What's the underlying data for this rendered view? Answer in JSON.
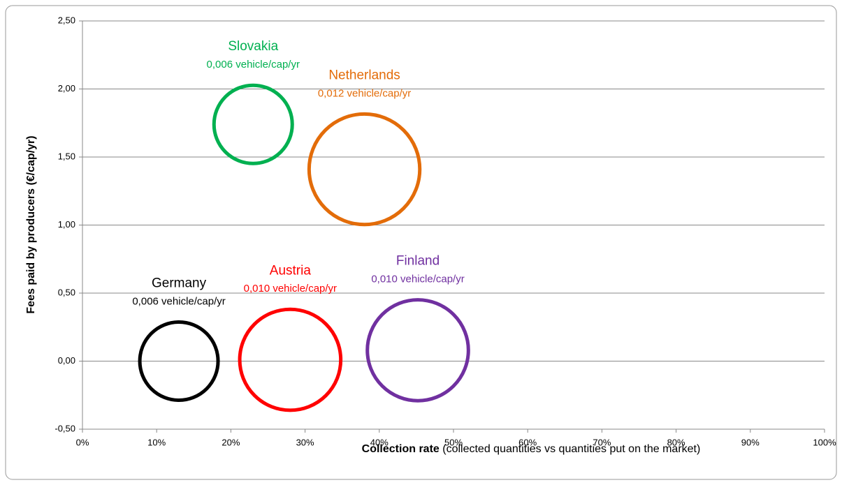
{
  "chart_data": {
    "type": "bubble",
    "x_label": [
      "Collection rate",
      " (collected quantities vs quantities put on the market)"
    ],
    "y_label": "Fees paid by producers (€/cap/yr)",
    "xlim": [
      0,
      100
    ],
    "xticks": [
      {
        "value": 0,
        "label": "0%"
      },
      {
        "value": 10,
        "label": "10%"
      },
      {
        "value": 20,
        "label": "20%"
      },
      {
        "value": 30,
        "label": "30%"
      },
      {
        "value": 40,
        "label": "40%"
      },
      {
        "value": 50,
        "label": "50%"
      },
      {
        "value": 60,
        "label": "60%"
      },
      {
        "value": 70,
        "label": "70%"
      },
      {
        "value": 80,
        "label": "80%"
      },
      {
        "value": 90,
        "label": "90%"
      },
      {
        "value": 100,
        "label": "100%"
      }
    ],
    "ylim": [
      -0.5,
      2.5
    ],
    "yticks": [
      {
        "value": -0.5,
        "label": "-0,50"
      },
      {
        "value": 0,
        "label": "0,00"
      },
      {
        "value": 0.5,
        "label": "0,50"
      },
      {
        "value": 1,
        "label": "1,00"
      },
      {
        "value": 1.5,
        "label": "1,50"
      },
      {
        "value": 2,
        "label": "2,00"
      },
      {
        "value": 2.5,
        "label": "2,50"
      }
    ],
    "grid": true,
    "series": [
      {
        "name": "Slovakia",
        "color": "#00b050",
        "x": [
          23
        ],
        "values": [
          1.74
        ],
        "sizes": [
          0.006
        ],
        "size_labels": [
          "0,006 vehicle/cap/yr"
        ]
      },
      {
        "name": "Netherlands",
        "color": "#e36c09",
        "x": [
          38
        ],
        "values": [
          1.41
        ],
        "sizes": [
          0.012
        ],
        "size_labels": [
          "0,012 vehicle/cap/yr"
        ]
      },
      {
        "name": "Germany",
        "color": "#000000",
        "x": [
          13
        ],
        "values": [
          0.0
        ],
        "sizes": [
          0.006
        ],
        "size_labels": [
          "0,006 vehicle/cap/yr"
        ]
      },
      {
        "name": "Austria",
        "color": "#ff0000",
        "x": [
          28
        ],
        "values": [
          0.01
        ],
        "sizes": [
          0.01
        ],
        "size_labels": [
          "0,010 vehicle/cap/yr"
        ]
      },
      {
        "name": "Finland",
        "color": "#7030a0",
        "x": [
          45.2
        ],
        "values": [
          0.08
        ],
        "sizes": [
          0.01
        ],
        "size_labels": [
          "0,010 vehicle/cap/yr"
        ]
      }
    ]
  }
}
